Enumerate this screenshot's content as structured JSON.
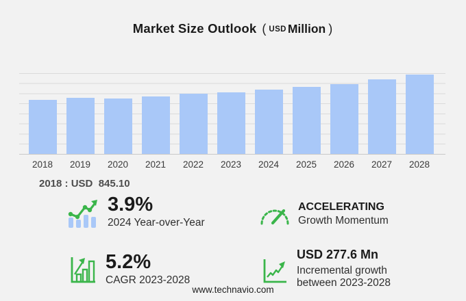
{
  "header": {
    "title": "Market Size Outlook",
    "paren_open": "(",
    "unit_prefix": "USD",
    "unit": "Million",
    "paren_close": ")"
  },
  "chart_data": {
    "type": "bar",
    "categories": [
      "2018",
      "2019",
      "2020",
      "2021",
      "2022",
      "2023",
      "2024",
      "2025",
      "2026",
      "2027",
      "2028"
    ],
    "values": [
      845.1,
      877.3,
      863.5,
      898.7,
      934.9,
      961.5,
      999.0,
      1041.4,
      1090.5,
      1165.2,
      1239.1
    ],
    "title": "Market Size Outlook (USD Million)",
    "xlabel": "",
    "ylabel": "",
    "ylim": [
      0,
      1260
    ],
    "grid": true,
    "legend": "none",
    "bar_color": "#a9c8f8"
  },
  "annotation_2018": "2018 : USD  845.10",
  "stats": [
    {
      "icon": "bars-trend-icon",
      "value": "3.9%",
      "label": "2024 Year-over-Year"
    },
    {
      "icon": "speedometer-icon",
      "value": "ACCELERATING",
      "label": "Growth Momentum"
    },
    {
      "icon": "bar-growth-icon",
      "value": "5.2%",
      "label": "CAGR 2023-2028"
    },
    {
      "icon": "line-growth-icon",
      "value": "USD 277.6 Mn",
      "label": "Incremental growth between 2023-2028"
    }
  ],
  "footer": {
    "website": "www.technavio.com"
  },
  "colors": {
    "accent_green": "#3ab54a",
    "bar_blue": "#a9c8f8",
    "background": "#f2f2f2",
    "gridline": "#dbdbdb"
  }
}
